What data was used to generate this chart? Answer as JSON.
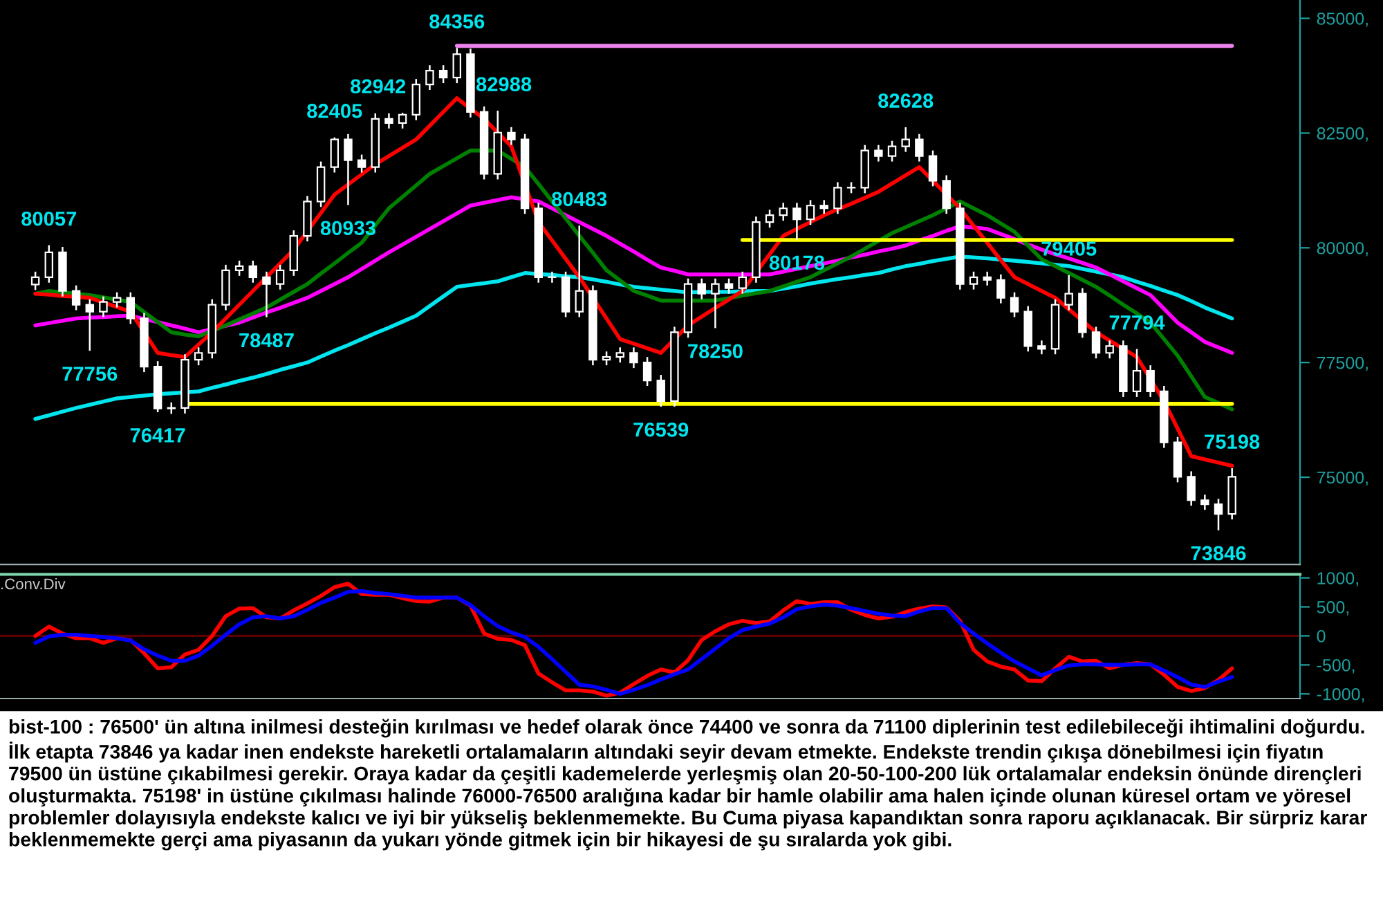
{
  "chart_data": [
    {
      "type": "candlestick",
      "ylim": [
        73100,
        85400
      ],
      "tick_labels": "y",
      "categories": [
        null,
        null,
        null,
        null,
        null,
        null,
        null,
        null,
        null,
        null,
        null,
        null,
        null,
        null,
        null,
        null,
        null,
        null,
        null,
        null,
        null,
        null,
        null,
        null,
        null,
        null,
        null,
        null,
        null,
        null,
        null,
        null,
        null,
        null,
        null,
        null,
        null,
        null,
        null,
        null,
        null,
        null,
        null,
        null,
        null,
        null,
        null,
        null,
        null,
        null,
        null,
        null,
        null,
        null,
        null,
        null,
        null,
        null,
        null,
        null,
        null,
        null,
        null,
        null,
        null,
        null,
        null,
        null,
        null,
        null,
        null,
        null,
        null,
        null,
        null,
        null,
        null,
        null,
        null,
        null,
        null,
        null,
        null,
        null,
        null,
        null,
        null,
        null,
        null
      ],
      "yticks": [
        {
          "value": 75000,
          "label": "75000,"
        },
        {
          "value": 77500,
          "label": "77500,"
        },
        {
          "value": 80000,
          "label": "80000,"
        },
        {
          "value": 82500,
          "label": "82500,"
        },
        {
          "value": 85000,
          "label": "85000,"
        }
      ],
      "series": [
        {
          "type": "candlestick",
          "color": "#ffffff",
          "ohlc": [
            [
              79200,
              79480,
              79080,
              79360
            ],
            [
              79360,
              80057,
              79240,
              79900
            ],
            [
              79900,
              80020,
              78940,
              79060
            ],
            [
              79060,
              79180,
              78640,
              78760
            ],
            [
              78760,
              78880,
              77756,
              78610
            ],
            [
              78610,
              78940,
              78490,
              78820
            ],
            [
              78820,
              79030,
              78700,
              78910
            ],
            [
              78910,
              79030,
              78340,
              78460
            ],
            [
              78460,
              78580,
              77290,
              77410
            ],
            [
              77410,
              77530,
              76417,
              76500
            ],
            [
              76500,
              76630,
              76380,
              76510
            ],
            [
              76510,
              77680,
              76390,
              77560
            ],
            [
              77560,
              77830,
              77440,
              77710
            ],
            [
              77710,
              78880,
              77590,
              78760
            ],
            [
              78760,
              79630,
              78640,
              79510
            ],
            [
              79510,
              79720,
              79390,
              79600
            ],
            [
              79600,
              79720,
              79240,
              79360
            ],
            [
              79360,
              79480,
              78487,
              79210
            ],
            [
              79210,
              79630,
              79090,
              79510
            ],
            [
              79510,
              80380,
              79390,
              80260
            ],
            [
              80260,
              81130,
              80140,
              81010
            ],
            [
              81010,
              81880,
              80890,
              81760
            ],
            [
              81760,
              82405,
              81640,
              82360
            ],
            [
              82360,
              82480,
              80933,
              81910
            ],
            [
              81910,
              82030,
              81640,
              81760
            ],
            [
              81760,
              82930,
              81640,
              82810
            ],
            [
              82810,
              82930,
              82600,
              82720
            ],
            [
              82720,
              82942,
              82600,
              82900
            ],
            [
              82900,
              83680,
              82780,
              83560
            ],
            [
              83560,
              83980,
              83440,
              83860
            ],
            [
              83860,
              83980,
              83590,
              83710
            ],
            [
              83710,
              84356,
              83590,
              84220
            ],
            [
              84220,
              84340,
              82840,
              82960
            ],
            [
              82960,
              83080,
              81490,
              81610
            ],
            [
              81610,
              82988,
              81490,
              82510
            ],
            [
              82510,
              82630,
              82240,
              82360
            ],
            [
              82360,
              82480,
              80740,
              80860
            ],
            [
              80860,
              80980,
              79240,
              79360
            ],
            [
              79360,
              79480,
              79240,
              79360
            ],
            [
              79360,
              79480,
              78490,
              78610
            ],
            [
              78610,
              80483,
              78490,
              79060
            ],
            [
              79060,
              79180,
              77440,
              77560
            ],
            [
              77560,
              77740,
              77440,
              77620
            ],
            [
              77620,
              77830,
              77500,
              77710
            ],
            [
              77710,
              77830,
              77380,
              77500
            ],
            [
              77500,
              77620,
              76990,
              77110
            ],
            [
              77110,
              77230,
              76539,
              76660
            ],
            [
              76660,
              78280,
              76540,
              78160
            ],
            [
              78160,
              79330,
              78040,
              79210
            ],
            [
              79210,
              79330,
              78880,
              79000
            ],
            [
              79000,
              79330,
              78250,
              79210
            ],
            [
              79210,
              79330,
              79000,
              79120
            ],
            [
              79120,
              79480,
              79000,
              79360
            ],
            [
              79360,
              80680,
              79240,
              80560
            ],
            [
              80560,
              80830,
              80440,
              80710
            ],
            [
              80710,
              80980,
              80590,
              80860
            ],
            [
              80860,
              80980,
              80178,
              80620
            ],
            [
              80620,
              81040,
              80500,
              80920
            ],
            [
              80920,
              81040,
              80740,
              80860
            ],
            [
              80860,
              81430,
              80740,
              81310
            ],
            [
              81310,
              81430,
              81190,
              81310
            ],
            [
              81310,
              82240,
              81190,
              82120
            ],
            [
              82120,
              82240,
              81880,
              82000
            ],
            [
              82000,
              82330,
              81880,
              82210
            ],
            [
              82210,
              82628,
              82090,
              82360
            ],
            [
              82360,
              82480,
              81880,
              82000
            ],
            [
              82000,
              82120,
              81340,
              81460
            ],
            [
              81460,
              81580,
              80740,
              80860
            ],
            [
              80860,
              80980,
              79090,
              79210
            ],
            [
              79210,
              79480,
              79090,
              79360
            ],
            [
              79360,
              79480,
              79180,
              79300
            ],
            [
              79300,
              79420,
              78790,
              78910
            ],
            [
              78910,
              79030,
              78490,
              78610
            ],
            [
              78610,
              78730,
              77740,
              77860
            ],
            [
              77860,
              77980,
              77680,
              77800
            ],
            [
              77800,
              78880,
              77680,
              78760
            ],
            [
              78760,
              79405,
              78640,
              79000
            ],
            [
              79000,
              79120,
              78040,
              78160
            ],
            [
              78160,
              78280,
              77590,
              77710
            ],
            [
              77710,
              77980,
              77590,
              77860
            ],
            [
              77860,
              77980,
              76750,
              76870
            ],
            [
              76870,
              77794,
              76750,
              77320
            ],
            [
              77320,
              77440,
              76750,
              76870
            ],
            [
              76870,
              76990,
              75640,
              75760
            ],
            [
              75760,
              75880,
              74890,
              75010
            ],
            [
              75010,
              75130,
              74380,
              74500
            ],
            [
              74500,
              74620,
              74290,
              74410
            ],
            [
              74410,
              74530,
              73846,
              74200
            ],
            [
              74200,
              75198,
              74080,
              75010
            ]
          ]
        },
        {
          "type": "line",
          "color": "#00e5ee",
          "values": [
            76270,
            76350,
            76430,
            76510,
            76580,
            76650,
            76720,
            76750,
            76780,
            76810,
            76830,
            76850,
            76870,
            76950,
            77020,
            77100,
            77170,
            77250,
            77340,
            77420,
            77500,
            77630,
            77760,
            77880,
            78010,
            78140,
            78260,
            78390,
            78520,
            78730,
            78940,
            79150,
            79190,
            79230,
            79270,
            79360,
            79450,
            79430,
            79410,
            79380,
            79360,
            79310,
            79260,
            79200,
            79150,
            79120,
            79090,
            79060,
            79030,
            79040,
            79040,
            79040,
            79050,
            79060,
            79060,
            79110,
            79160,
            79220,
            79270,
            79320,
            79360,
            79410,
            79450,
            79530,
            79600,
            79650,
            79710,
            79760,
            79810,
            79790,
            79770,
            79740,
            79720,
            79690,
            79660,
            79630,
            79600,
            79540,
            79480,
            79420,
            79360,
            79260,
            79170,
            79070,
            78970,
            78840,
            78700,
            78580,
            78460
          ]
        },
        {
          "type": "line",
          "color": "#ff00ff",
          "values": [
            78310,
            78360,
            78410,
            78460,
            78480,
            78490,
            78510,
            78520,
            78450,
            78380,
            78310,
            78240,
            78160,
            78230,
            78300,
            78370,
            78480,
            78590,
            78690,
            78800,
            78910,
            79060,
            79210,
            79360,
            79540,
            79720,
            79900,
            80070,
            80240,
            80410,
            80580,
            80750,
            80920,
            80980,
            81040,
            81100,
            null,
            81010,
            80860,
            80710,
            80560,
            80410,
            80260,
            80090,
            79920,
            79740,
            79570,
            79500,
            79420,
            79420,
            79420,
            79420,
            79420,
            79420,
            79420,
            79480,
            79540,
            79600,
            79660,
            79720,
            79790,
            79850,
            79920,
            79980,
            80050,
            80160,
            80260,
            80370,
            80470,
            80440,
            80410,
            80300,
            80190,
            80070,
            79960,
            79860,
            79770,
            79670,
            79570,
            79420,
            79270,
            79120,
            78970,
            78670,
            78370,
            78160,
            77950,
            77830,
            77710
          ]
        },
        {
          "type": "line",
          "color": "#008000",
          "values": [
            79000,
            79060,
            79030,
            79000,
            78970,
            78920,
            78870,
            78820,
            78600,
            78380,
            78160,
            78110,
            78070,
            78190,
            78310,
            78440,
            78570,
            78700,
            78870,
            79040,
            79210,
            79440,
            79660,
            79890,
            80110,
            80490,
            80860,
            81110,
            81360,
            81610,
            81780,
            81950,
            82120,
            82120,
            82120,
            81940,
            81760,
            81390,
            81010,
            80640,
            80260,
            79890,
            79510,
            79290,
            79060,
            78960,
            78850,
            78850,
            78850,
            78850,
            78850,
            78900,
            78960,
            79010,
            79060,
            79160,
            79260,
            79360,
            79510,
            79660,
            79810,
            79980,
            80150,
            80320,
            80450,
            80580,
            80710,
            80860,
            81010,
            80860,
            80710,
            80530,
            80350,
            80050,
            79750,
            79600,
            79450,
            79300,
            79150,
            78960,
            78760,
            78570,
            78370,
            78010,
            77650,
            77200,
            76750,
            76620,
            76480
          ]
        },
        {
          "type": "line",
          "color": "#ff0000",
          "values": [
            79000,
            78980,
            78950,
            78930,
            78910,
            78810,
            78710,
            78610,
            78160,
            77710,
            77660,
            77620,
            77890,
            78160,
            78460,
            78760,
            79060,
            79360,
            79660,
            79960,
            80360,
            80760,
            81160,
            81380,
            81600,
            81820,
            82000,
            82180,
            82360,
            82660,
            82960,
            83260,
            83030,
            82810,
            82510,
            82210,
            null,
            80560,
            80160,
            79760,
            79360,
            78910,
            78460,
            78010,
            77910,
            77810,
            77710,
            78010,
            78310,
            78500,
            78690,
            78870,
            79060,
            79460,
            79860,
            80260,
            80410,
            80560,
            80710,
            80840,
            80960,
            81090,
            81220,
            81400,
            81580,
            81760,
            81460,
            81160,
            80860,
            80480,
            80110,
            79730,
            79360,
            79210,
            79060,
            78910,
            78660,
            78410,
            78160,
            77980,
            77800,
            77620,
            77140,
            76660,
            76060,
            75460,
            75390,
            75320,
            75250
          ]
        },
        {
          "type": "line",
          "color": "#ee82ee",
          "values": [
            null,
            null,
            null,
            null,
            null,
            null,
            null,
            null,
            null,
            null,
            null,
            null,
            null,
            null,
            null,
            null,
            null,
            null,
            null,
            null,
            null,
            null,
            null,
            null,
            null,
            null,
            null,
            null,
            null,
            null,
            null,
            84400,
            84400,
            84400,
            84400,
            84400,
            84400,
            84400,
            84400,
            84400,
            84400,
            84400,
            84400,
            84400,
            84400,
            84400,
            84400,
            84400,
            84400,
            84400,
            84400,
            84400,
            84400,
            84400,
            84400,
            84400,
            84400,
            84400,
            84400,
            84400,
            84400,
            84400,
            84400,
            84400,
            84400,
            84400,
            84400,
            84400,
            84400,
            84400,
            84400,
            84400,
            84400,
            84400,
            84400,
            84400,
            84400,
            84400,
            84400,
            84400,
            84400,
            84400,
            84400,
            84400,
            84400,
            84400,
            84400,
            84400,
            84400
          ]
        },
        {
          "type": "line",
          "color": "#ffff00",
          "values": [
            null,
            null,
            null,
            null,
            null,
            null,
            null,
            null,
            null,
            null,
            null,
            null,
            null,
            null,
            null,
            null,
            null,
            null,
            null,
            null,
            null,
            null,
            null,
            null,
            null,
            null,
            null,
            null,
            null,
            null,
            null,
            null,
            null,
            null,
            null,
            null,
            null,
            null,
            null,
            null,
            null,
            null,
            null,
            null,
            null,
            null,
            null,
            null,
            null,
            null,
            null,
            null,
            80170,
            80170,
            80170,
            80170,
            80170,
            80170,
            80170,
            80170,
            80170,
            80170,
            80170,
            80170,
            80170,
            80170,
            80170,
            80170,
            80170,
            80170,
            80170,
            80170,
            80170,
            80170,
            80170,
            80170,
            80170,
            80170,
            80170,
            80170,
            80170,
            80170,
            80170,
            80170,
            80170,
            80170,
            80170,
            80170,
            80170
          ]
        },
        {
          "type": "line",
          "color": "#ffff00",
          "values": [
            null,
            null,
            null,
            null,
            null,
            null,
            null,
            null,
            null,
            null,
            null,
            76600,
            76600,
            76600,
            76600,
            76600,
            76600,
            76600,
            76600,
            76600,
            76600,
            76600,
            76600,
            76600,
            76600,
            76600,
            76600,
            76600,
            76600,
            76600,
            76600,
            76600,
            76600,
            76600,
            76600,
            76600,
            76600,
            76600,
            76600,
            76600,
            76600,
            76600,
            76600,
            76600,
            76600,
            76600,
            76600,
            76600,
            76600,
            76600,
            76600,
            76600,
            76600,
            76600,
            76600,
            76600,
            76600,
            76600,
            76600,
            76600,
            76600,
            76600,
            76600,
            76600,
            76600,
            76600,
            76600,
            76600,
            76600,
            76600,
            76600,
            76600,
            76600,
            76600,
            76600,
            76600,
            76600,
            76600,
            76600,
            76600,
            76600,
            76600,
            76600,
            76600,
            76600,
            76600,
            76600,
            76600,
            76600
          ]
        }
      ],
      "annotations": [
        {
          "text": "80057",
          "y": 80057
        },
        {
          "text": "77756",
          "y": 77756
        },
        {
          "text": "76417",
          "y": 76417
        },
        {
          "text": "78487",
          "y": 78487
        },
        {
          "text": "82405",
          "y": 82405
        },
        {
          "text": "80933",
          "y": 80933
        },
        {
          "text": "82942",
          "y": 82942
        },
        {
          "text": "84356",
          "y": 84356
        },
        {
          "text": "82988",
          "y": 82988
        },
        {
          "text": "80483",
          "y": 80483
        },
        {
          "text": "76539",
          "y": 76539
        },
        {
          "text": "78250",
          "y": 78250
        },
        {
          "text": "80178",
          "y": 80178
        },
        {
          "text": "82628",
          "y": 82628
        },
        {
          "text": "79405",
          "y": 79405
        },
        {
          "text": "77794",
          "y": 77794
        },
        {
          "text": "73846",
          "y": 73846
        },
        {
          "text": "75198",
          "y": 75198
        }
      ]
    },
    {
      "type": "line",
      "title": ".Conv.Div",
      "ylim": [
        -1080,
        1060
      ],
      "tick_labels": "y",
      "categories": [
        null,
        null,
        null,
        null,
        null,
        null,
        null,
        null,
        null,
        null,
        null,
        null,
        null,
        null,
        null,
        null,
        null,
        null,
        null,
        null,
        null,
        null,
        null,
        null,
        null,
        null,
        null,
        null,
        null,
        null,
        null,
        null,
        null,
        null,
        null,
        null,
        null,
        null,
        null,
        null,
        null,
        null,
        null,
        null,
        null,
        null,
        null,
        null,
        null,
        null,
        null,
        null,
        null,
        null,
        null,
        null,
        null,
        null,
        null,
        null,
        null,
        null,
        null,
        null,
        null,
        null,
        null,
        null,
        null,
        null,
        null,
        null,
        null,
        null,
        null,
        null,
        null,
        null,
        null,
        null,
        null,
        null,
        null,
        null,
        null,
        null,
        null,
        null,
        null
      ],
      "yticks": [
        {
          "value": 1000,
          "label": "1000,"
        },
        {
          "value": 500,
          "label": "500,"
        },
        0,
        {
          "value": -500,
          "label": "-500,"
        },
        {
          "value": -1000,
          "label": "-1000,"
        }
      ],
      "ref_lines": [
        {
          "axis": "y",
          "value": 0,
          "color": "#5a0000"
        }
      ],
      "series": [
        {
          "color": "#ff0000",
          "values": [
            0,
            160,
            40,
            -40,
            -40,
            -120,
            -40,
            -70,
            -300,
            -560,
            -540,
            -320,
            -240,
            0,
            340,
            470,
            480,
            320,
            300,
            440,
            560,
            690,
            840,
            900,
            720,
            710,
            710,
            650,
            600,
            590,
            660,
            660,
            520,
            40,
            -50,
            -70,
            -160,
            -650,
            -800,
            -940,
            -940,
            -960,
            -1030,
            -980,
            -830,
            -690,
            -580,
            -630,
            -420,
            -70,
            80,
            200,
            260,
            220,
            250,
            440,
            600,
            550,
            580,
            580,
            450,
            360,
            300,
            330,
            410,
            470,
            510,
            490,
            260,
            -240,
            -440,
            -530,
            -580,
            -770,
            -780,
            -560,
            -360,
            -440,
            -430,
            -560,
            -500,
            -470,
            -490,
            -670,
            -880,
            -950,
            -900,
            -760,
            -560
          ]
        },
        {
          "color": "#0000ff",
          "values": [
            -120,
            -10,
            20,
            20,
            0,
            -20,
            -40,
            -80,
            -230,
            -340,
            -430,
            -430,
            -340,
            -170,
            20,
            200,
            320,
            340,
            300,
            340,
            450,
            570,
            660,
            760,
            770,
            740,
            720,
            690,
            660,
            660,
            660,
            660,
            530,
            340,
            170,
            60,
            -20,
            -190,
            -400,
            -620,
            -840,
            -870,
            -930,
            -1000,
            -930,
            -850,
            -750,
            -660,
            -580,
            -400,
            -220,
            -40,
            100,
            160,
            210,
            320,
            460,
            510,
            540,
            520,
            480,
            430,
            380,
            350,
            340,
            420,
            480,
            480,
            220,
            40,
            -130,
            -290,
            -440,
            -560,
            -680,
            -590,
            -510,
            -490,
            -490,
            -500,
            -500,
            -490,
            -490,
            -600,
            -710,
            -840,
            -880,
            -790,
            -710
          ]
        }
      ]
    },
    {
      "type": "other",
      "annotations": [
        "bist-100 : 76500' ün altına inilmesi desteğin kırılması ve hedef olarak önce 74400 ve sonra da 71100 diplerinin test edilebileceği ihtimalini doğurdu. İlk etapta 73846 ya kadar inen endekste hareketli ortalamaların altındaki seyir devam etmekte. Endekste trendin çıkışa dönebilmesi için fiyatın 79500 ün üstüne çıkabilmesi gerekir. Oraya kadar da çeşitli kademelerde yerleşmiş olan 20-50-100-200 lük ortalamalar endeksin önünde dirençleri oluşturmakta. 75198' in üstüne çıkılması halinde 76000-76500 aralığına kadar bir hamle olabilir ama halen içinde olunan küresel ortam ve yöresel problemler dolayısıyla endekste kalıcı ve iyi bir yükseliş beklenmemekte. Bu Cuma piyasa kapandıktan sonra raporu açıklanacak. Bir sürpriz karar beklenmemekte gerçi ama piyasanın da yukarı yönde gitmek için bir hikayesi de şu sıralarda yok gibi."
      ]
    }
  ]
}
